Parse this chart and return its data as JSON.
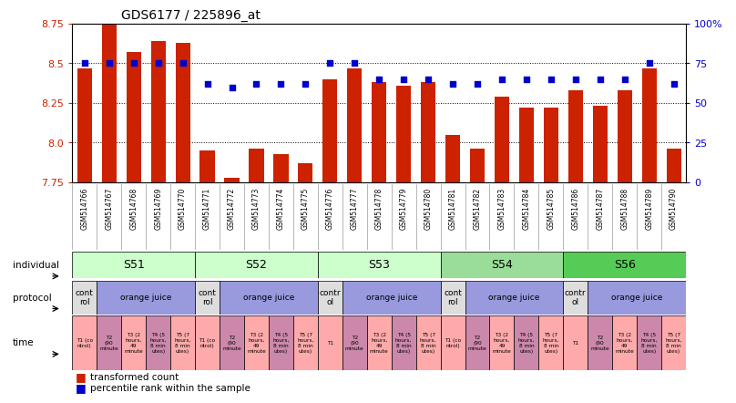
{
  "title": "GDS6177 / 225896_at",
  "gsm_labels": [
    "GSM514766",
    "GSM514767",
    "GSM514768",
    "GSM514769",
    "GSM514770",
    "GSM514771",
    "GSM514772",
    "GSM514773",
    "GSM514774",
    "GSM514775",
    "GSM514776",
    "GSM514777",
    "GSM514778",
    "GSM514779",
    "GSM514780",
    "GSM514781",
    "GSM514782",
    "GSM514783",
    "GSM514784",
    "GSM514785",
    "GSM514786",
    "GSM514787",
    "GSM514788",
    "GSM514789",
    "GSM514790"
  ],
  "bar_values": [
    8.47,
    8.75,
    8.57,
    8.64,
    8.63,
    7.95,
    7.78,
    7.96,
    7.93,
    7.87,
    8.4,
    8.47,
    8.38,
    8.36,
    8.38,
    8.05,
    7.96,
    8.29,
    8.22,
    8.22,
    8.33,
    8.23,
    8.33,
    8.47,
    7.96
  ],
  "dot_values": [
    75,
    75,
    75,
    75,
    75,
    62,
    60,
    62,
    62,
    62,
    75,
    75,
    65,
    65,
    65,
    62,
    62,
    65,
    65,
    65,
    65,
    65,
    65,
    75,
    62
  ],
  "ylim_left": [
    7.75,
    8.75
  ],
  "ylim_right": [
    0,
    100
  ],
  "bar_color": "#cc2200",
  "dot_color": "#0000cc",
  "y_ticks_left": [
    7.75,
    8.0,
    8.25,
    8.5,
    8.75
  ],
  "y_ticks_right": [
    0,
    25,
    50,
    75,
    100
  ],
  "individuals": [
    {
      "label": "S51",
      "start": 0,
      "end": 5,
      "color": "#ccffcc"
    },
    {
      "label": "S52",
      "start": 5,
      "end": 10,
      "color": "#ccffcc"
    },
    {
      "label": "S53",
      "start": 10,
      "end": 15,
      "color": "#ccffcc"
    },
    {
      "label": "S54",
      "start": 15,
      "end": 20,
      "color": "#99dd99"
    },
    {
      "label": "S56",
      "start": 20,
      "end": 25,
      "color": "#55cc55"
    }
  ],
  "protocols": [
    {
      "label": "cont\nrol",
      "start": 0,
      "end": 1,
      "color": "#dddddd"
    },
    {
      "label": "orange juice",
      "start": 1,
      "end": 5,
      "color": "#9999dd"
    },
    {
      "label": "cont\nrol",
      "start": 5,
      "end": 6,
      "color": "#dddddd"
    },
    {
      "label": "orange juice",
      "start": 6,
      "end": 10,
      "color": "#9999dd"
    },
    {
      "label": "contr\nol",
      "start": 10,
      "end": 11,
      "color": "#dddddd"
    },
    {
      "label": "orange juice",
      "start": 11,
      "end": 15,
      "color": "#9999dd"
    },
    {
      "label": "cont\nrol",
      "start": 15,
      "end": 16,
      "color": "#dddddd"
    },
    {
      "label": "orange juice",
      "start": 16,
      "end": 20,
      "color": "#9999dd"
    },
    {
      "label": "contr\nol",
      "start": 20,
      "end": 21,
      "color": "#dddddd"
    },
    {
      "label": "orange juice",
      "start": 21,
      "end": 25,
      "color": "#9999dd"
    }
  ],
  "times": [
    {
      "label": "T1 (co\nntrol)",
      "start": 0,
      "end": 1,
      "color": "#ffaaaa"
    },
    {
      "label": "T2\n(90\nminute",
      "start": 1,
      "end": 2,
      "color": "#cc88aa"
    },
    {
      "label": "T3 (2\nhours,\n49\nminute",
      "start": 2,
      "end": 3,
      "color": "#ffaaaa"
    },
    {
      "label": "T4 (5\nhours,\n8 min\nutes)",
      "start": 3,
      "end": 4,
      "color": "#cc88aa"
    },
    {
      "label": "T5 (7\nhours,\n8 min\nutes)",
      "start": 4,
      "end": 5,
      "color": "#ffaaaa"
    },
    {
      "label": "T1 (co\nntrol)",
      "start": 5,
      "end": 6,
      "color": "#ffaaaa"
    },
    {
      "label": "T2\n(90\nminute",
      "start": 6,
      "end": 7,
      "color": "#cc88aa"
    },
    {
      "label": "T3 (2\nhours,\n49\nminute",
      "start": 7,
      "end": 8,
      "color": "#ffaaaa"
    },
    {
      "label": "T4 (5\nhours,\n8 min\nutes)",
      "start": 8,
      "end": 9,
      "color": "#cc88aa"
    },
    {
      "label": "T5 (7\nhours,\n8 min\nutes)",
      "start": 9,
      "end": 10,
      "color": "#ffaaaa"
    },
    {
      "label": "T1",
      "start": 10,
      "end": 11,
      "color": "#ffaaaa"
    },
    {
      "label": "T2\n(90\nminute",
      "start": 11,
      "end": 12,
      "color": "#cc88aa"
    },
    {
      "label": "T3 (2\nhours,\n49\nminute",
      "start": 12,
      "end": 13,
      "color": "#ffaaaa"
    },
    {
      "label": "T4 (5\nhours,\n8 min\nutes)",
      "start": 13,
      "end": 14,
      "color": "#cc88aa"
    },
    {
      "label": "T5 (7\nhours,\n8 min\nutes)",
      "start": 14,
      "end": 15,
      "color": "#ffaaaa"
    },
    {
      "label": "T1 (co\nntrol)",
      "start": 15,
      "end": 16,
      "color": "#ffaaaa"
    },
    {
      "label": "T2\n(90\nminute",
      "start": 16,
      "end": 17,
      "color": "#cc88aa"
    },
    {
      "label": "T3 (2\nhours,\n49\nminute",
      "start": 17,
      "end": 18,
      "color": "#ffaaaa"
    },
    {
      "label": "T4 (5\nhours,\n8 min\nutes)",
      "start": 18,
      "end": 19,
      "color": "#cc88aa"
    },
    {
      "label": "T5 (7\nhours,\n8 min\nutes)",
      "start": 19,
      "end": 20,
      "color": "#ffaaaa"
    },
    {
      "label": "T1",
      "start": 20,
      "end": 21,
      "color": "#ffaaaa"
    },
    {
      "label": "T2\n(90\nminute",
      "start": 21,
      "end": 22,
      "color": "#cc88aa"
    },
    {
      "label": "T3 (2\nhours,\n49\nminute",
      "start": 22,
      "end": 23,
      "color": "#ffaaaa"
    },
    {
      "label": "T4 (5\nhours,\n8 min\nutes)",
      "start": 23,
      "end": 24,
      "color": "#cc88aa"
    },
    {
      "label": "T5 (7\nhours,\n8 min\nutes)",
      "start": 24,
      "end": 25,
      "color": "#ffaaaa"
    }
  ],
  "row_labels": [
    "individual",
    "protocol",
    "time"
  ],
  "legend_labels": [
    "transformed count",
    "percentile rank within the sample"
  ]
}
